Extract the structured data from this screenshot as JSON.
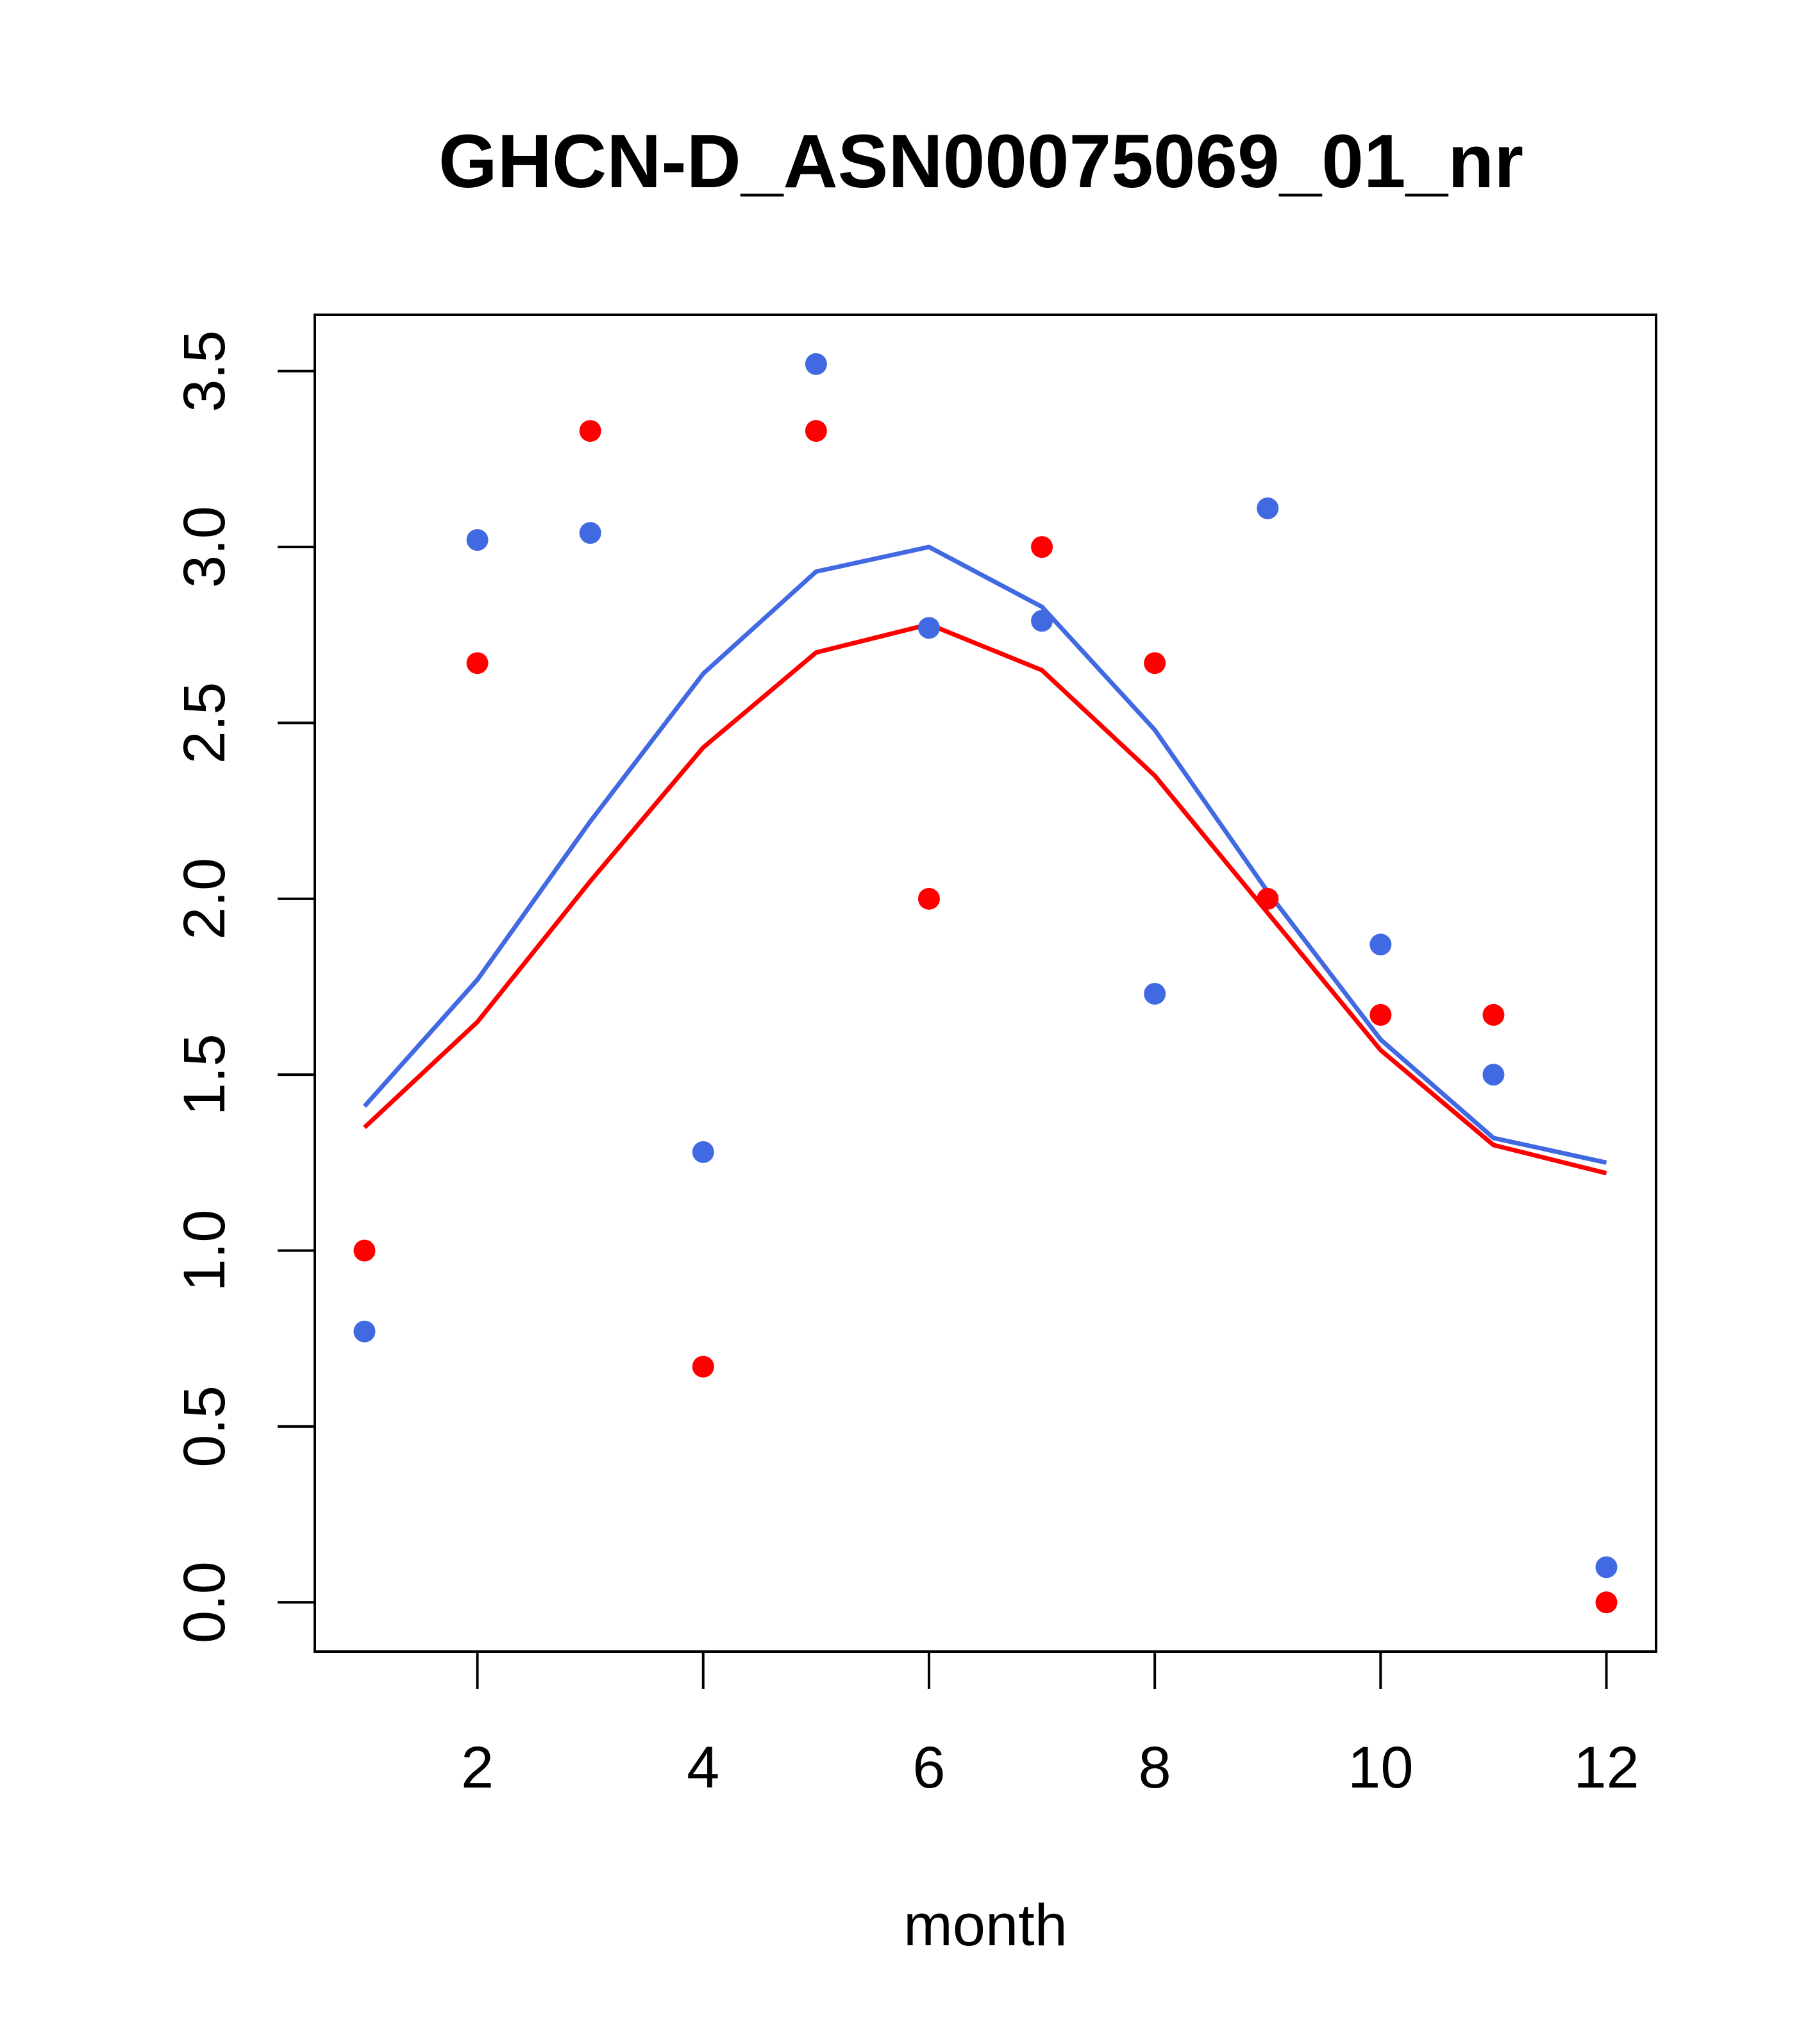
{
  "chart_data": {
    "type": "scatter",
    "title": "GHCN-D_ASN00075069_01_nr",
    "xlabel": "month",
    "ylabel": "",
    "xlim": [
      0.56,
      12.44
    ],
    "ylim": [
      -0.14,
      3.66
    ],
    "xticks": [
      2,
      4,
      6,
      8,
      10,
      12
    ],
    "yticks": [
      0.0,
      0.5,
      1.0,
      1.5,
      2.0,
      2.5,
      3.0,
      3.5
    ],
    "ytick_labels": [
      "0.0",
      "0.5",
      "1.0",
      "1.5",
      "2.0",
      "2.5",
      "3.0",
      "3.5"
    ],
    "grid": false,
    "series": [
      {
        "kind": "points",
        "color": "#4169E1",
        "x": [
          1,
          2,
          3,
          4,
          5,
          6,
          7,
          8,
          9,
          10,
          11,
          12
        ],
        "y": [
          0.77,
          3.02,
          3.04,
          1.28,
          3.52,
          2.77,
          2.79,
          1.73,
          3.11,
          1.87,
          1.5,
          0.1
        ]
      },
      {
        "kind": "points",
        "color": "#FF0000",
        "x": [
          1,
          2,
          3,
          4,
          5,
          6,
          7,
          8,
          9,
          10,
          11,
          12
        ],
        "y": [
          1.0,
          2.67,
          3.33,
          0.67,
          3.33,
          2.0,
          3.0,
          2.67,
          2.0,
          1.67,
          1.67,
          0.0
        ]
      },
      {
        "kind": "line",
        "color": "#4169E1",
        "x": [
          1,
          2,
          3,
          4,
          5,
          6,
          7,
          8,
          9,
          10,
          11,
          12
        ],
        "y": [
          1.41,
          1.77,
          2.22,
          2.64,
          2.93,
          3.0,
          2.83,
          2.48,
          2.02,
          1.6,
          1.32,
          1.25
        ]
      },
      {
        "kind": "line",
        "color": "#FF0000",
        "x": [
          1,
          2,
          3,
          4,
          5,
          6,
          7,
          8,
          9,
          10,
          11,
          12
        ],
        "y": [
          1.35,
          1.65,
          2.05,
          2.43,
          2.7,
          2.78,
          2.65,
          2.35,
          1.96,
          1.57,
          1.3,
          1.22
        ]
      }
    ]
  }
}
